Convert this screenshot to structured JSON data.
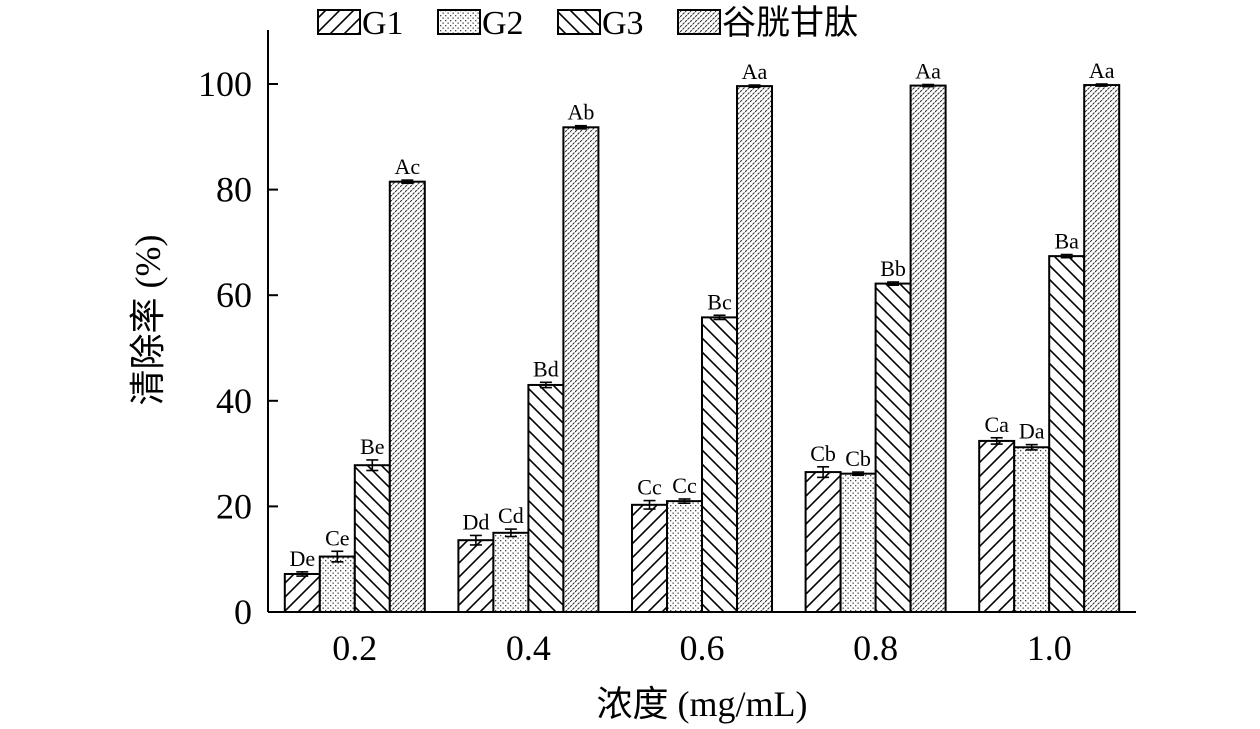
{
  "chart_data": {
    "type": "bar",
    "xlabel": "浓度 (mg/mL)",
    "ylabel": "清除率 (%)",
    "categories": [
      "0.2",
      "0.4",
      "0.6",
      "0.8",
      "1.0"
    ],
    "ylim": [
      0,
      110
    ],
    "yticks": [
      0,
      20,
      40,
      60,
      80,
      100
    ],
    "ytick_labels": [
      "0",
      "20",
      "40",
      "60",
      "80",
      "100"
    ],
    "grid": false,
    "legend_position": "top",
    "series": [
      {
        "name": "G1",
        "values": [
          7.2,
          13.6,
          20.3,
          26.5,
          32.4
        ],
        "errors": [
          0.4,
          0.9,
          0.8,
          1.0,
          0.6
        ],
        "labels": [
          "De",
          "Dd",
          "Cc",
          "Cb",
          "Ca"
        ],
        "pattern": "diag-up"
      },
      {
        "name": "G2",
        "values": [
          10.5,
          15.0,
          21.0,
          26.2,
          31.2
        ],
        "errors": [
          1.0,
          0.7,
          0.4,
          0.3,
          0.5
        ],
        "labels": [
          "Ce",
          "Cd",
          "Cc",
          "Cb",
          "Da"
        ],
        "pattern": "dots"
      },
      {
        "name": "G3",
        "values": [
          27.8,
          43.0,
          55.8,
          62.2,
          67.4
        ],
        "errors": [
          1.0,
          0.5,
          0.4,
          0.3,
          0.3
        ],
        "labels": [
          "Be",
          "Bd",
          "Bc",
          "Bb",
          "Ba"
        ],
        "pattern": "diag-down"
      },
      {
        "name": "谷胱甘肽",
        "values": [
          81.5,
          91.8,
          99.6,
          99.7,
          99.8
        ],
        "errors": [
          0.3,
          0.3,
          0.2,
          0.2,
          0.2
        ],
        "labels": [
          "Ac",
          "Ab",
          "Aa",
          "Aa",
          "Aa"
        ],
        "pattern": "dense-dots"
      }
    ]
  }
}
